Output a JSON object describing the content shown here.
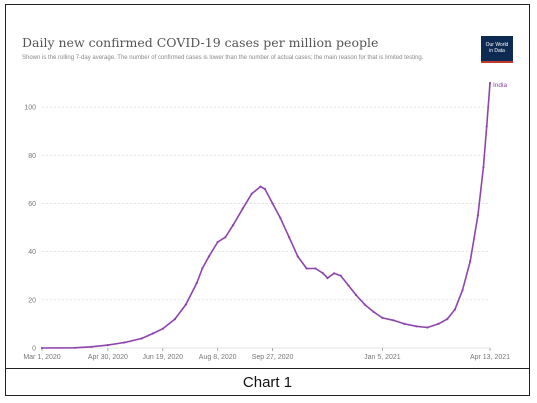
{
  "chart_data": {
    "type": "line",
    "title": "Daily new confirmed COVID-19 cases per million people",
    "subtitle": "Shown is the rolling 7-day average. The number of confirmed cases is lower than the number of actual cases; the main reason for that is limited testing.",
    "source_logo": [
      "Our World",
      "in Data"
    ],
    "ylim": [
      0,
      110
    ],
    "y_ticks": [
      0,
      20,
      40,
      60,
      80,
      100
    ],
    "x_ticks": [
      "Mar 1, 2020",
      "Apr 30, 2020",
      "Jun 19, 2020",
      "Aug 8, 2020",
      "Sep 27, 2020",
      "Jan 5, 2021",
      "Apr 13, 2021"
    ],
    "x_tick_dates": [
      "2020-03-01",
      "2020-04-30",
      "2020-06-19",
      "2020-08-08",
      "2020-09-27",
      "2021-01-05",
      "2021-04-13"
    ],
    "grid": true,
    "line_color": "#8e44ad",
    "series": [
      {
        "name": "India",
        "points": [
          [
            "2020-03-01",
            0
          ],
          [
            "2020-03-31",
            0.1
          ],
          [
            "2020-04-15",
            0.5
          ],
          [
            "2020-04-30",
            1.2
          ],
          [
            "2020-05-15",
            2.3
          ],
          [
            "2020-05-31",
            4
          ],
          [
            "2020-06-10",
            6
          ],
          [
            "2020-06-19",
            8
          ],
          [
            "2020-06-30",
            12
          ],
          [
            "2020-07-10",
            18
          ],
          [
            "2020-07-20",
            27
          ],
          [
            "2020-07-25",
            33
          ],
          [
            "2020-07-31",
            38
          ],
          [
            "2020-08-08",
            44
          ],
          [
            "2020-08-15",
            46
          ],
          [
            "2020-08-22",
            51
          ],
          [
            "2020-08-31",
            58
          ],
          [
            "2020-09-08",
            64
          ],
          [
            "2020-09-16",
            67
          ],
          [
            "2020-09-20",
            66
          ],
          [
            "2020-09-27",
            60
          ],
          [
            "2020-10-04",
            54
          ],
          [
            "2020-10-12",
            46
          ],
          [
            "2020-10-20",
            38
          ],
          [
            "2020-10-28",
            33
          ],
          [
            "2020-11-05",
            33
          ],
          [
            "2020-11-12",
            31
          ],
          [
            "2020-11-16",
            29
          ],
          [
            "2020-11-22",
            31
          ],
          [
            "2020-11-28",
            30
          ],
          [
            "2020-12-05",
            26
          ],
          [
            "2020-12-12",
            22
          ],
          [
            "2020-12-20",
            18
          ],
          [
            "2020-12-28",
            15
          ],
          [
            "2021-01-05",
            12.5
          ],
          [
            "2021-01-15",
            11.5
          ],
          [
            "2021-01-25",
            10
          ],
          [
            "2021-02-05",
            9
          ],
          [
            "2021-02-15",
            8.5
          ],
          [
            "2021-02-25",
            10
          ],
          [
            "2021-03-05",
            12
          ],
          [
            "2021-03-12",
            16
          ],
          [
            "2021-03-19",
            24
          ],
          [
            "2021-03-26",
            36
          ],
          [
            "2021-04-02",
            55
          ],
          [
            "2021-04-07",
            75
          ],
          [
            "2021-04-10",
            92
          ],
          [
            "2021-04-13",
            110
          ]
        ]
      }
    ],
    "series_label": "India"
  },
  "caption": "Chart 1"
}
